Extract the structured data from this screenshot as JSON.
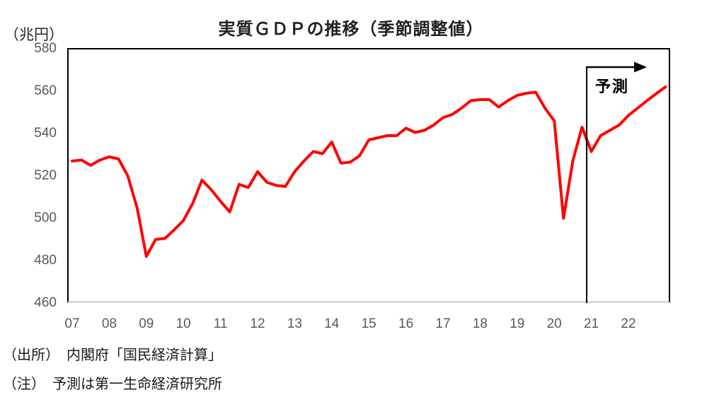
{
  "chart": {
    "title": "実質ＧＤＰの推移（季節調整値）",
    "unit_label": "（兆円）",
    "annotation": {
      "label": "予測"
    }
  },
  "footer": {
    "source": "（出所）　内閣府「国民経済計算」",
    "note": "（注）　予測は第一生命経済研究所"
  },
  "colors": {
    "line": "#ff0000",
    "axis_text": "#595959",
    "plot_border": "#000000",
    "baseline": "#d9d9d9",
    "annotation": "#000000"
  },
  "chart_data": {
    "type": "line",
    "title": "実質ＧＤＰの推移（季節調整値）",
    "ylabel": "（兆円）",
    "ylim": [
      460,
      580
    ],
    "ytick_interval": 20,
    "yticks": [
      580,
      560,
      540,
      520,
      500,
      480,
      460
    ],
    "xticks": [
      "07",
      "08",
      "09",
      "10",
      "11",
      "12",
      "13",
      "14",
      "15",
      "16",
      "17",
      "18",
      "19",
      "20",
      "21",
      "22"
    ],
    "grid": false,
    "legend_position": "none",
    "annotation_label": "予測",
    "forecast_start_index": 56,
    "x": [
      "2007Q1",
      "2007Q2",
      "2007Q3",
      "2007Q4",
      "2008Q1",
      "2008Q2",
      "2008Q3",
      "2008Q4",
      "2009Q1",
      "2009Q2",
      "2009Q3",
      "2009Q4",
      "2010Q1",
      "2010Q2",
      "2010Q3",
      "2010Q4",
      "2011Q1",
      "2011Q2",
      "2011Q3",
      "2011Q4",
      "2012Q1",
      "2012Q2",
      "2012Q3",
      "2012Q4",
      "2013Q1",
      "2013Q2",
      "2013Q3",
      "2013Q4",
      "2014Q1",
      "2014Q2",
      "2014Q3",
      "2014Q4",
      "2015Q1",
      "2015Q2",
      "2015Q3",
      "2015Q4",
      "2016Q1",
      "2016Q2",
      "2016Q3",
      "2016Q4",
      "2017Q1",
      "2017Q2",
      "2017Q3",
      "2017Q4",
      "2018Q1",
      "2018Q2",
      "2018Q3",
      "2018Q4",
      "2019Q1",
      "2019Q2",
      "2019Q3",
      "2019Q4",
      "2020Q1",
      "2020Q2",
      "2020Q3",
      "2020Q4",
      "2021Q1",
      "2021Q2",
      "2021Q3",
      "2021Q4",
      "2022Q1",
      "2022Q2",
      "2022Q3",
      "2022Q4",
      "2023Q1"
    ],
    "series": [
      {
        "name": "実質GDP（季節調整値、兆円）",
        "color": "#ff0000",
        "values": [
          527,
          527.5,
          525,
          527.5,
          529,
          528,
          520,
          505,
          482,
          490,
          490.5,
          494.5,
          499,
          507,
          518,
          513.5,
          508,
          503,
          516,
          514.5,
          522,
          517,
          515.5,
          515,
          522,
          527,
          531.5,
          530.5,
          536,
          526,
          526.5,
          529.5,
          537,
          538,
          539,
          539,
          542.5,
          540.5,
          541.5,
          544,
          547.5,
          549,
          552,
          555.5,
          556,
          556,
          552.5,
          555.5,
          558,
          559,
          559.5,
          552,
          546,
          500,
          527,
          543,
          531.5,
          539,
          541.5,
          544,
          548.5,
          552,
          555.5,
          558.8,
          562
        ]
      }
    ]
  }
}
